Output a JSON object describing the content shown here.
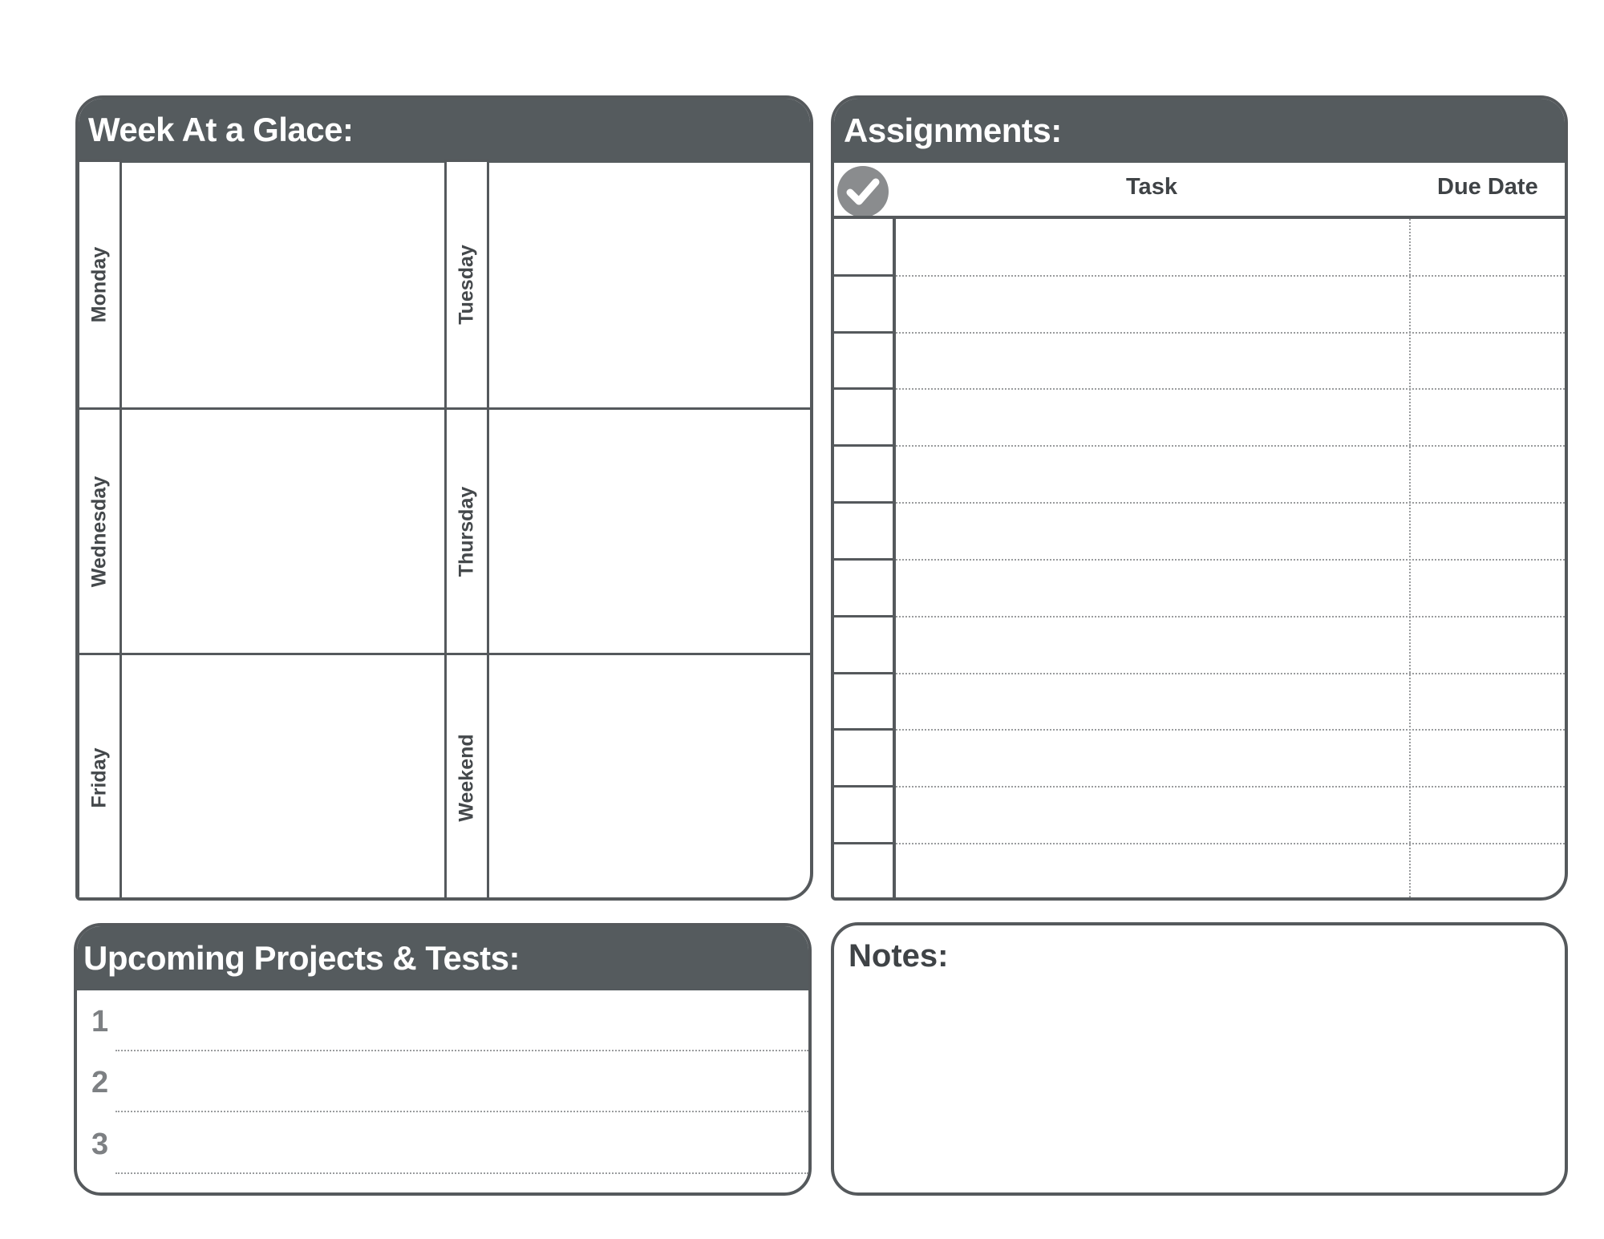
{
  "week": {
    "title": "Week At a Glace:",
    "days": [
      "Monday",
      "Tuesday",
      "Wednesday",
      "Thursday",
      "Friday",
      "Weekend"
    ]
  },
  "assignments": {
    "title": "Assignments:",
    "check_icon": "check-circle-icon",
    "columns": {
      "task": "Task",
      "due_date": "Due Date"
    },
    "row_count": 12
  },
  "upcoming": {
    "title": "Upcoming Projects & Tests:",
    "items": [
      "1",
      "2",
      "3"
    ]
  },
  "notes": {
    "title": "Notes:"
  },
  "colors": {
    "header": "#555b5e",
    "border": "#55595c",
    "check": "#8a8c8e"
  }
}
